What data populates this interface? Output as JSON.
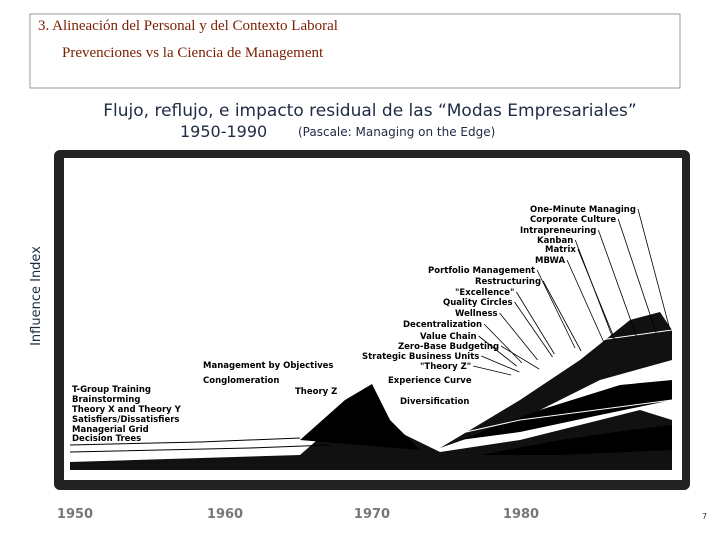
{
  "header": {
    "line1": "3. Alineación del Personal y del Contexto Laboral",
    "line2": "Prevenciones vs la Ciencia de Management"
  },
  "subtitle": {
    "line1": "Flujo, reflujo, e impacto residual de las “Modas Empresariales”",
    "years": "1950-1990",
    "source": "(Pascale: Managing on the Edge)"
  },
  "chart": {
    "y_label": "Influence Index",
    "x_labels": [
      "1950",
      "1960",
      "1970",
      "1980"
    ],
    "fads": [
      "One-Minute Managing",
      "Corporate Culture",
      "Intrapreneuring",
      "Kanban",
      "Matrix",
      "MBWA",
      "Portfolio Management",
      "Restructuring",
      "\"Excellence\"",
      "Quality Circles",
      "Wellness",
      "Decentralization",
      "Value Chain",
      "Zero-Base Budgeting",
      "Strategic Business Units",
      "\"Theory Z\"",
      "Management by Objectives",
      "Conglomeration",
      "Experience Curve",
      "Theory Z",
      "T-Group Training",
      "Brainstorming",
      "Diversification",
      "Theory X and Theory Y",
      "Satisfiers/Dissatisfiers",
      "Managerial Grid",
      "Decision Trees"
    ]
  },
  "page_number": "7"
}
